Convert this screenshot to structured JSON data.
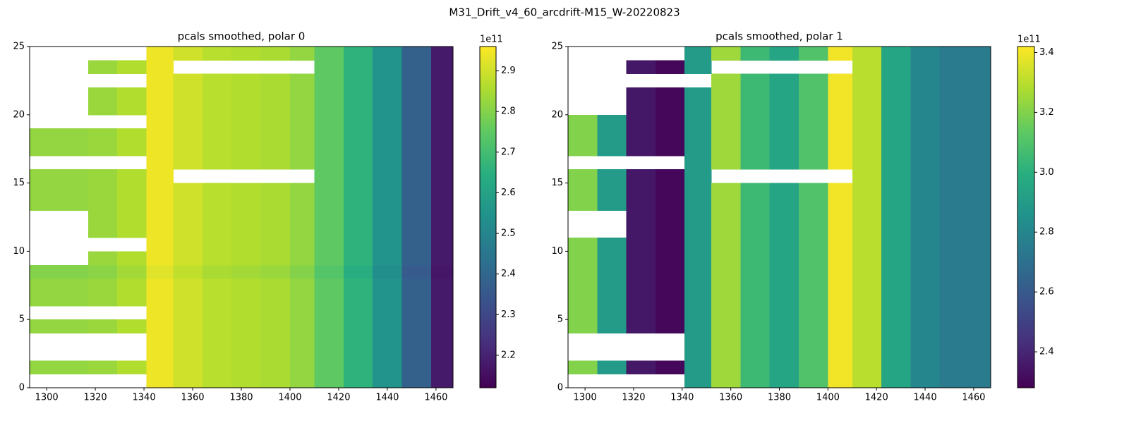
{
  "suptitle": "M31_Drift_v4_60_arcdrift-M15_W-20220823",
  "chart_data": [
    {
      "type": "heatmap",
      "title": "pcals smoothed, polar 0",
      "cmap": "viridis",
      "x_edges": [
        1293,
        1305,
        1317,
        1329,
        1341,
        1352,
        1364,
        1376,
        1388,
        1400,
        1410,
        1422,
        1434,
        1446,
        1458,
        1467
      ],
      "y_edges": [
        0,
        1,
        2,
        3,
        4,
        5,
        6,
        7,
        8,
        9,
        10,
        11,
        12,
        13,
        14,
        15,
        16,
        17,
        18,
        19,
        20,
        21,
        22,
        23,
        24,
        25
      ],
      "xlim": [
        1293,
        1467
      ],
      "ylim": [
        0,
        25
      ],
      "xticks": [
        1300,
        1320,
        1340,
        1360,
        1380,
        1400,
        1420,
        1440,
        1460
      ],
      "yticks": [
        0,
        5,
        10,
        15,
        20,
        25
      ],
      "clim": [
        2.12,
        2.96
      ],
      "cticks": [
        2.2,
        2.3,
        2.4,
        2.5,
        2.6,
        2.7,
        2.8,
        2.9
      ],
      "c_offset_label": "1e11",
      "z": [
        [
          null,
          null,
          null,
          null,
          2.94,
          2.9,
          2.87,
          2.86,
          2.85,
          2.82,
          2.75,
          2.66,
          2.55,
          2.38,
          2.18
        ],
        [
          2.82,
          2.82,
          2.83,
          2.86,
          2.94,
          2.9,
          2.87,
          2.86,
          2.85,
          2.82,
          2.75,
          2.66,
          2.55,
          2.38,
          2.18
        ],
        [
          null,
          null,
          null,
          null,
          2.94,
          2.9,
          2.87,
          2.86,
          2.85,
          2.82,
          2.75,
          2.66,
          2.55,
          2.38,
          2.18
        ],
        [
          null,
          null,
          null,
          null,
          2.94,
          2.9,
          2.87,
          2.86,
          2.85,
          2.82,
          2.75,
          2.66,
          2.55,
          2.38,
          2.18
        ],
        [
          2.82,
          2.82,
          2.83,
          2.86,
          2.94,
          2.9,
          2.87,
          2.86,
          2.85,
          2.82,
          2.75,
          2.66,
          2.55,
          2.38,
          2.18
        ],
        [
          null,
          null,
          null,
          null,
          2.94,
          2.9,
          2.87,
          2.86,
          2.85,
          2.82,
          2.75,
          2.66,
          2.55,
          2.38,
          2.18
        ],
        [
          2.82,
          2.82,
          2.83,
          2.86,
          2.94,
          2.9,
          2.87,
          2.86,
          2.85,
          2.82,
          2.75,
          2.66,
          2.55,
          2.38,
          2.18
        ],
        [
          2.82,
          2.82,
          2.83,
          2.86,
          2.94,
          2.9,
          2.87,
          2.86,
          2.85,
          2.82,
          2.75,
          2.66,
          2.55,
          2.38,
          2.18
        ],
        [
          2.8,
          2.8,
          2.81,
          2.84,
          2.92,
          2.88,
          2.85,
          2.84,
          2.83,
          2.8,
          2.73,
          2.64,
          2.53,
          2.36,
          2.17
        ],
        [
          null,
          null,
          2.83,
          2.86,
          2.94,
          2.9,
          2.87,
          2.86,
          2.85,
          2.82,
          2.75,
          2.66,
          2.55,
          2.38,
          2.18
        ],
        [
          null,
          null,
          null,
          null,
          2.94,
          2.9,
          2.87,
          2.86,
          2.85,
          2.82,
          2.75,
          2.66,
          2.55,
          2.38,
          2.18
        ],
        [
          null,
          null,
          2.83,
          2.86,
          2.94,
          2.9,
          2.87,
          2.86,
          2.85,
          2.82,
          2.75,
          2.66,
          2.55,
          2.38,
          2.18
        ],
        [
          null,
          null,
          2.83,
          2.86,
          2.94,
          2.9,
          2.87,
          2.86,
          2.85,
          2.82,
          2.75,
          2.66,
          2.55,
          2.38,
          2.18
        ],
        [
          2.82,
          2.82,
          2.83,
          2.86,
          2.94,
          2.9,
          2.87,
          2.86,
          2.85,
          2.82,
          2.75,
          2.66,
          2.55,
          2.38,
          2.18
        ],
        [
          2.82,
          2.82,
          2.83,
          2.86,
          2.94,
          2.9,
          2.87,
          2.86,
          2.85,
          2.82,
          2.75,
          2.66,
          2.55,
          2.38,
          2.18
        ],
        [
          2.82,
          2.82,
          2.83,
          2.86,
          2.94,
          null,
          null,
          null,
          null,
          null,
          2.75,
          2.66,
          2.55,
          2.38,
          2.18
        ],
        [
          null,
          null,
          null,
          null,
          2.94,
          2.9,
          2.87,
          2.86,
          2.85,
          2.82,
          2.75,
          2.66,
          2.55,
          2.38,
          2.18
        ],
        [
          2.82,
          2.82,
          2.83,
          2.86,
          2.94,
          2.9,
          2.87,
          2.86,
          2.85,
          2.82,
          2.75,
          2.66,
          2.55,
          2.38,
          2.18
        ],
        [
          2.82,
          2.82,
          2.83,
          2.86,
          2.94,
          2.9,
          2.87,
          2.86,
          2.85,
          2.82,
          2.75,
          2.66,
          2.55,
          2.38,
          2.18
        ],
        [
          null,
          null,
          null,
          null,
          2.94,
          2.9,
          2.87,
          2.86,
          2.85,
          2.82,
          2.75,
          2.66,
          2.55,
          2.38,
          2.18
        ],
        [
          null,
          null,
          2.83,
          2.86,
          2.94,
          2.9,
          2.87,
          2.86,
          2.85,
          2.82,
          2.75,
          2.66,
          2.55,
          2.38,
          2.18
        ],
        [
          null,
          null,
          2.83,
          2.86,
          2.94,
          2.9,
          2.87,
          2.86,
          2.85,
          2.82,
          2.75,
          2.66,
          2.55,
          2.38,
          2.18
        ],
        [
          null,
          null,
          null,
          null,
          2.94,
          2.9,
          2.87,
          2.86,
          2.85,
          2.82,
          2.75,
          2.66,
          2.55,
          2.38,
          2.18
        ],
        [
          null,
          null,
          2.83,
          2.86,
          2.94,
          null,
          null,
          null,
          null,
          null,
          2.75,
          2.66,
          2.55,
          2.38,
          2.18
        ],
        [
          null,
          null,
          null,
          null,
          2.94,
          2.9,
          2.87,
          2.86,
          2.85,
          2.82,
          2.75,
          2.66,
          2.55,
          2.38,
          2.18
        ]
      ]
    },
    {
      "type": "heatmap",
      "title": "pcals smoothed, polar 1",
      "cmap": "viridis",
      "x_edges": [
        1293,
        1305,
        1317,
        1329,
        1341,
        1352,
        1364,
        1376,
        1388,
        1400,
        1410,
        1422,
        1434,
        1446,
        1458,
        1467
      ],
      "y_edges": [
        0,
        1,
        2,
        3,
        4,
        5,
        6,
        7,
        8,
        9,
        10,
        11,
        12,
        13,
        14,
        15,
        16,
        17,
        18,
        19,
        20,
        21,
        22,
        23,
        24,
        25
      ],
      "xlim": [
        1293,
        1467
      ],
      "ylim": [
        0,
        25
      ],
      "xticks": [
        1300,
        1320,
        1340,
        1360,
        1380,
        1400,
        1420,
        1440,
        1460
      ],
      "yticks": [
        0,
        5,
        10,
        15,
        20,
        25
      ],
      "clim": [
        2.28,
        3.42
      ],
      "cticks": [
        2.4,
        2.6,
        2.8,
        {
          "value": 3,
          "label": "3.0"
        },
        3.2,
        3.4
      ],
      "c_offset_label": "1e11",
      "z": [
        [
          null,
          null,
          null,
          null,
          2.9,
          3.25,
          3.05,
          2.95,
          3.1,
          3.4,
          3.3,
          2.95,
          2.8,
          2.75,
          2.75
        ],
        [
          3.2,
          2.9,
          2.35,
          2.3,
          2.9,
          3.25,
          3.05,
          2.95,
          3.1,
          3.4,
          3.3,
          2.95,
          2.8,
          2.75,
          2.75
        ],
        [
          null,
          null,
          null,
          null,
          2.9,
          3.25,
          3.05,
          2.95,
          3.1,
          3.4,
          3.3,
          2.95,
          2.8,
          2.75,
          2.75
        ],
        [
          null,
          null,
          null,
          null,
          2.9,
          3.25,
          3.05,
          2.95,
          3.1,
          3.4,
          3.3,
          2.95,
          2.8,
          2.75,
          2.75
        ],
        [
          3.2,
          2.9,
          2.35,
          2.3,
          2.9,
          3.25,
          3.05,
          2.95,
          3.1,
          3.4,
          3.3,
          2.95,
          2.8,
          2.75,
          2.75
        ],
        [
          3.2,
          2.9,
          2.35,
          2.3,
          2.9,
          3.25,
          3.05,
          2.95,
          3.1,
          3.4,
          3.3,
          2.95,
          2.8,
          2.75,
          2.75
        ],
        [
          3.2,
          2.9,
          2.35,
          2.3,
          2.9,
          3.25,
          3.05,
          2.95,
          3.1,
          3.4,
          3.3,
          2.95,
          2.8,
          2.75,
          2.75
        ],
        [
          3.2,
          2.9,
          2.35,
          2.3,
          2.9,
          3.25,
          3.05,
          2.95,
          3.1,
          3.4,
          3.3,
          2.95,
          2.8,
          2.75,
          2.75
        ],
        [
          3.2,
          2.9,
          2.35,
          2.3,
          2.9,
          3.25,
          3.05,
          2.95,
          3.1,
          3.4,
          3.3,
          2.95,
          2.8,
          2.75,
          2.75
        ],
        [
          3.2,
          2.9,
          2.35,
          2.3,
          2.9,
          3.25,
          3.05,
          2.95,
          3.1,
          3.4,
          3.3,
          2.95,
          2.8,
          2.75,
          2.75
        ],
        [
          3.2,
          2.9,
          2.35,
          2.3,
          2.9,
          3.25,
          3.05,
          2.95,
          3.1,
          3.4,
          3.3,
          2.95,
          2.8,
          2.75,
          2.75
        ],
        [
          null,
          null,
          2.35,
          2.3,
          2.9,
          3.25,
          3.05,
          2.95,
          3.1,
          3.4,
          3.3,
          2.95,
          2.8,
          2.75,
          2.75
        ],
        [
          null,
          null,
          2.35,
          2.3,
          2.9,
          3.25,
          3.05,
          2.95,
          3.1,
          3.4,
          3.3,
          2.95,
          2.8,
          2.75,
          2.75
        ],
        [
          3.2,
          2.9,
          2.35,
          2.3,
          2.9,
          3.25,
          3.05,
          2.95,
          3.1,
          3.4,
          3.3,
          2.95,
          2.8,
          2.75,
          2.75
        ],
        [
          3.2,
          2.9,
          2.35,
          2.3,
          2.9,
          3.25,
          3.05,
          2.95,
          3.1,
          3.4,
          3.3,
          2.95,
          2.8,
          2.75,
          2.75
        ],
        [
          3.2,
          2.9,
          2.35,
          2.3,
          2.9,
          null,
          null,
          null,
          null,
          null,
          3.3,
          2.95,
          2.8,
          2.75,
          2.75
        ],
        [
          null,
          null,
          null,
          null,
          2.9,
          3.25,
          3.05,
          2.95,
          3.1,
          3.4,
          3.3,
          2.95,
          2.8,
          2.75,
          2.75
        ],
        [
          3.2,
          2.9,
          2.35,
          2.3,
          2.9,
          3.25,
          3.05,
          2.95,
          3.1,
          3.4,
          3.3,
          2.95,
          2.8,
          2.75,
          2.75
        ],
        [
          3.2,
          2.9,
          2.35,
          2.3,
          2.9,
          3.25,
          3.05,
          2.95,
          3.1,
          3.4,
          3.3,
          2.95,
          2.8,
          2.75,
          2.75
        ],
        [
          3.2,
          2.9,
          2.35,
          2.3,
          2.9,
          3.25,
          3.05,
          2.95,
          3.1,
          3.4,
          3.3,
          2.95,
          2.8,
          2.75,
          2.75
        ],
        [
          null,
          null,
          2.35,
          2.3,
          2.9,
          3.25,
          3.05,
          2.95,
          3.1,
          3.4,
          3.3,
          2.95,
          2.8,
          2.75,
          2.75
        ],
        [
          null,
          null,
          2.35,
          2.3,
          2.9,
          3.25,
          3.05,
          2.95,
          3.1,
          3.4,
          3.3,
          2.95,
          2.8,
          2.75,
          2.75
        ],
        [
          null,
          null,
          null,
          null,
          null,
          3.25,
          3.05,
          2.95,
          3.1,
          3.4,
          3.3,
          2.95,
          2.8,
          2.75,
          2.75
        ],
        [
          null,
          null,
          2.35,
          2.3,
          2.9,
          null,
          null,
          null,
          null,
          null,
          3.3,
          2.95,
          2.8,
          2.75,
          2.75
        ],
        [
          null,
          null,
          null,
          null,
          2.9,
          3.25,
          3.05,
          2.95,
          3.1,
          3.4,
          3.3,
          2.95,
          2.8,
          2.75,
          2.75
        ]
      ]
    }
  ]
}
